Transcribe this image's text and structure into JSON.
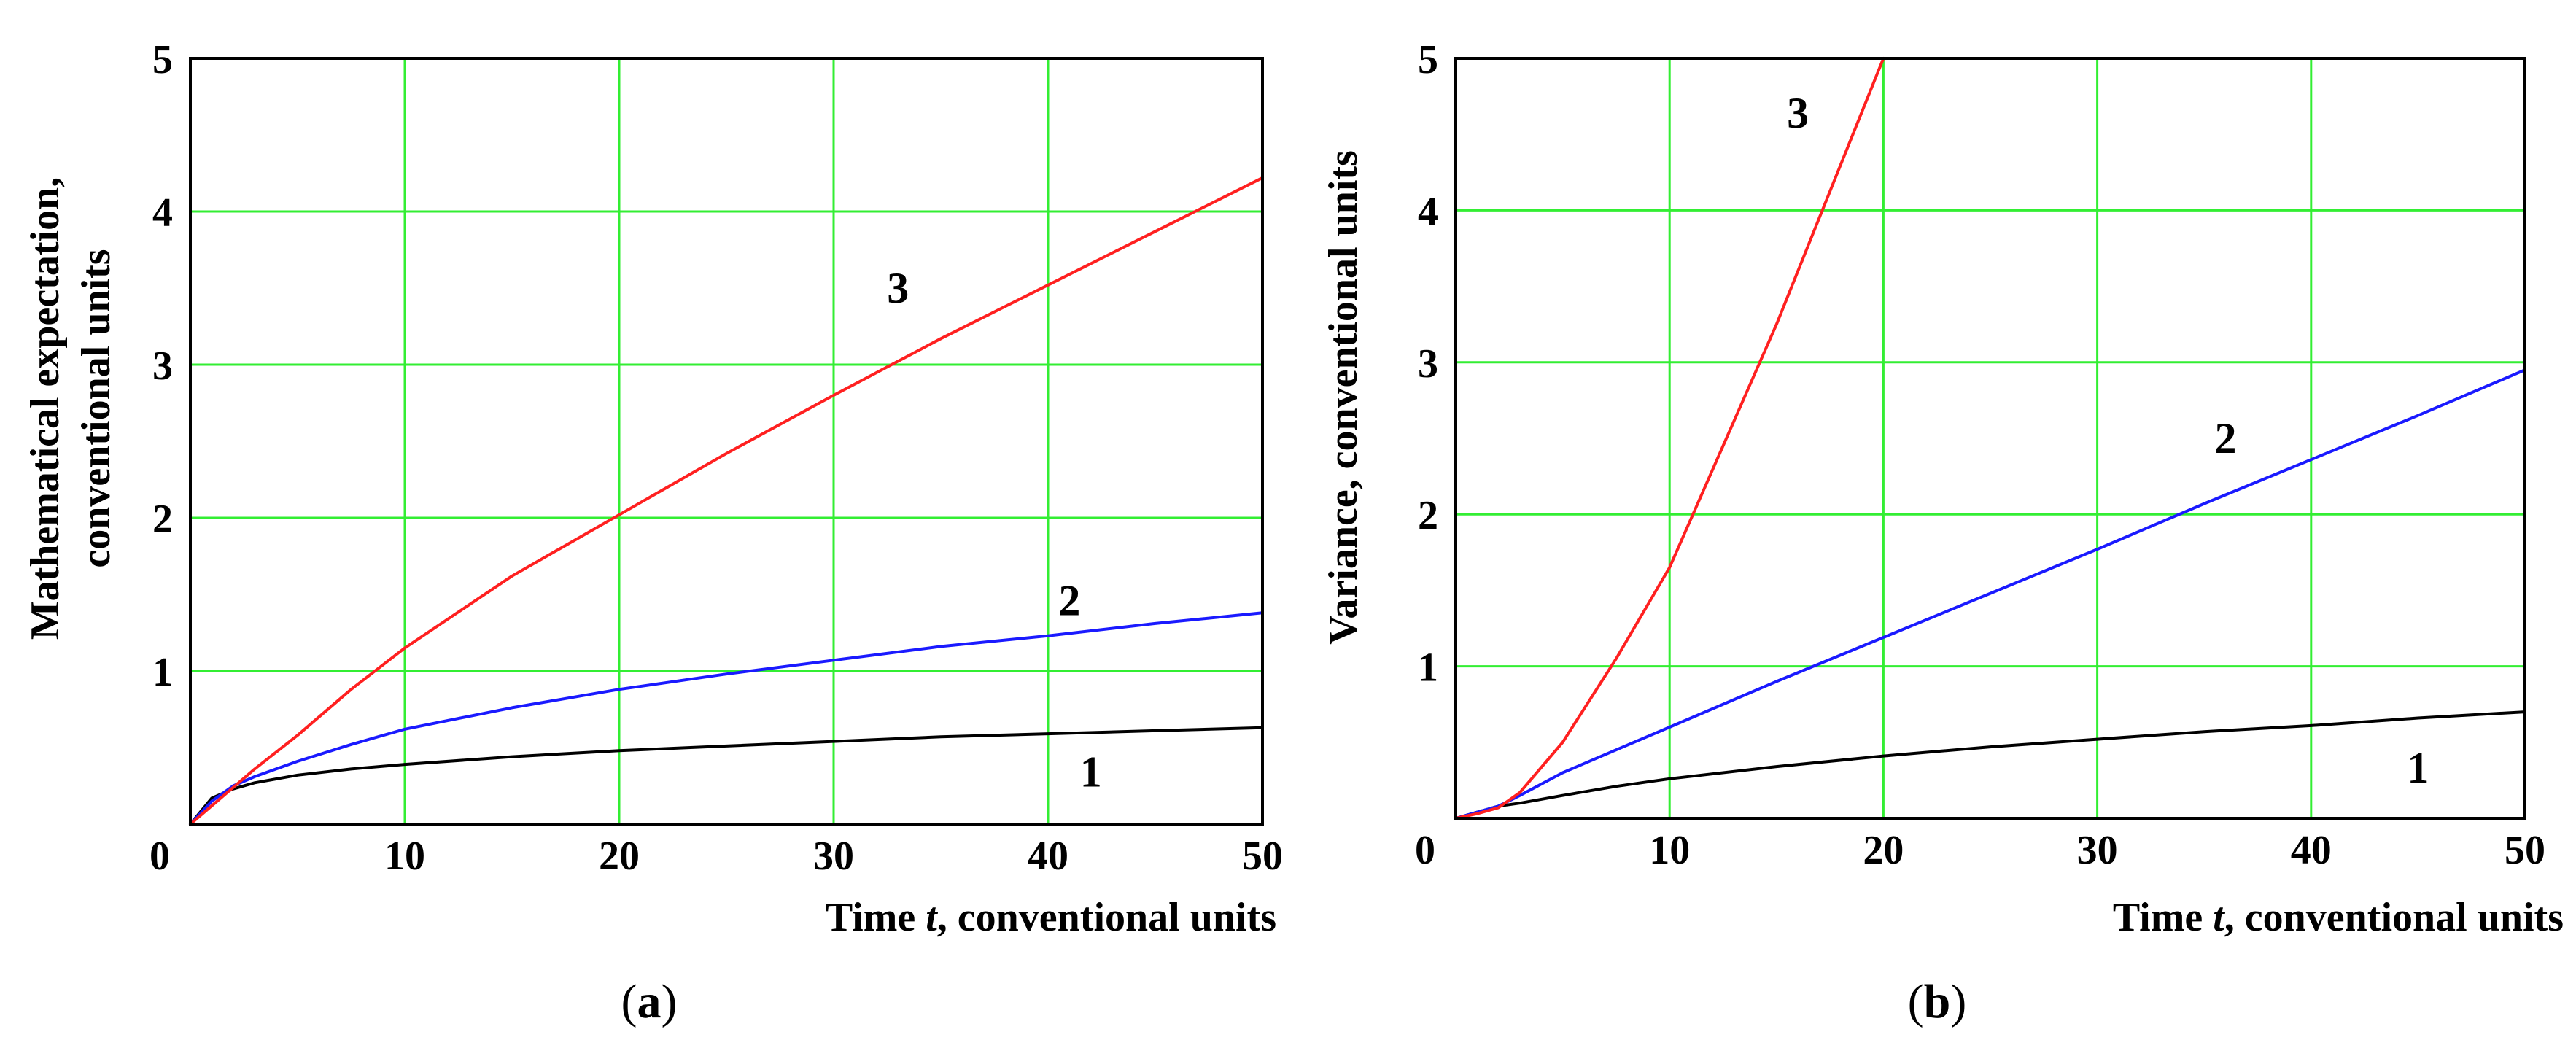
{
  "chart_data": [
    {
      "type": "line",
      "panel": "a",
      "panel_label_pre": "(",
      "panel_label_letter": "a",
      "panel_label_post": ")",
      "xlabel_pre": "Time ",
      "xlabel_var": "t",
      "xlabel_post": ", conventional units",
      "ylabel_line1": "Mathematical expectation,",
      "ylabel_line2": "conventional units",
      "xlim": [
        0,
        50
      ],
      "ylim": [
        0,
        5
      ],
      "x_ticks": [
        "0",
        "10",
        "20",
        "30",
        "40",
        "50"
      ],
      "y_ticks": [
        "1",
        "2",
        "3",
        "4",
        "5"
      ],
      "grid": true,
      "x": [
        0,
        1,
        2,
        3,
        5,
        7.5,
        10,
        15,
        20,
        25,
        30,
        35,
        40,
        45,
        50
      ],
      "series": [
        {
          "name": "1",
          "color": "#000000",
          "values": [
            0,
            0.17,
            0.23,
            0.27,
            0.32,
            0.36,
            0.39,
            0.44,
            0.48,
            0.51,
            0.54,
            0.57,
            0.59,
            0.61,
            0.63
          ]
        },
        {
          "name": "2",
          "color": "#1a1aff",
          "values": [
            0,
            0.15,
            0.25,
            0.31,
            0.41,
            0.52,
            0.62,
            0.76,
            0.88,
            0.98,
            1.07,
            1.16,
            1.23,
            1.31,
            1.38
          ]
        },
        {
          "name": "3",
          "color": "#ff2020",
          "values": [
            0,
            0.12,
            0.24,
            0.36,
            0.58,
            0.88,
            1.15,
            1.62,
            2.02,
            2.42,
            2.8,
            3.17,
            3.52,
            3.87,
            4.22
          ]
        }
      ],
      "annotations": [
        {
          "text": "1",
          "x": 42,
          "y": 0.34
        },
        {
          "text": "2",
          "x": 41,
          "y": 1.46
        },
        {
          "text": "3",
          "x": 33,
          "y": 3.5
        }
      ]
    },
    {
      "type": "line",
      "panel": "b",
      "panel_label_pre": "(",
      "panel_label_letter": "b",
      "panel_label_post": ")",
      "xlabel_pre": "Time ",
      "xlabel_var": "t",
      "xlabel_post": ", conventional units",
      "ylabel_line1": "Variance, conventional units",
      "xlim": [
        0,
        50
      ],
      "ylim": [
        0,
        5
      ],
      "x_ticks": [
        "0",
        "10",
        "20",
        "30",
        "40",
        "50"
      ],
      "y_ticks": [
        "1",
        "2",
        "3",
        "4",
        "5"
      ],
      "grid": true,
      "x": [
        0,
        1,
        2,
        3,
        5,
        7.5,
        10,
        15,
        20,
        25,
        30,
        35,
        40,
        45,
        50
      ],
      "series": [
        {
          "name": "1",
          "color": "#000000",
          "values": [
            0,
            0.04,
            0.08,
            0.1,
            0.15,
            0.21,
            0.26,
            0.34,
            0.41,
            0.47,
            0.52,
            0.57,
            0.61,
            0.66,
            0.7
          ]
        },
        {
          "name": "2",
          "color": "#1a1aff",
          "values": [
            0,
            0.04,
            0.08,
            0.15,
            0.3,
            0.45,
            0.6,
            0.9,
            1.19,
            1.48,
            1.77,
            2.07,
            2.36,
            2.65,
            2.95
          ]
        },
        {
          "name": "3",
          "color": "#ff2020",
          "values": [
            0,
            0.03,
            0.07,
            0.17,
            0.5,
            1.05,
            1.65,
            3.25,
            5.0,
            null,
            null,
            null,
            null,
            null,
            null
          ]
        }
      ],
      "annotations": [
        {
          "text": "1",
          "x": 45,
          "y": 0.33
        },
        {
          "text": "2",
          "x": 36,
          "y": 2.5
        },
        {
          "text": "3",
          "x": 16,
          "y": 4.64
        }
      ]
    }
  ]
}
